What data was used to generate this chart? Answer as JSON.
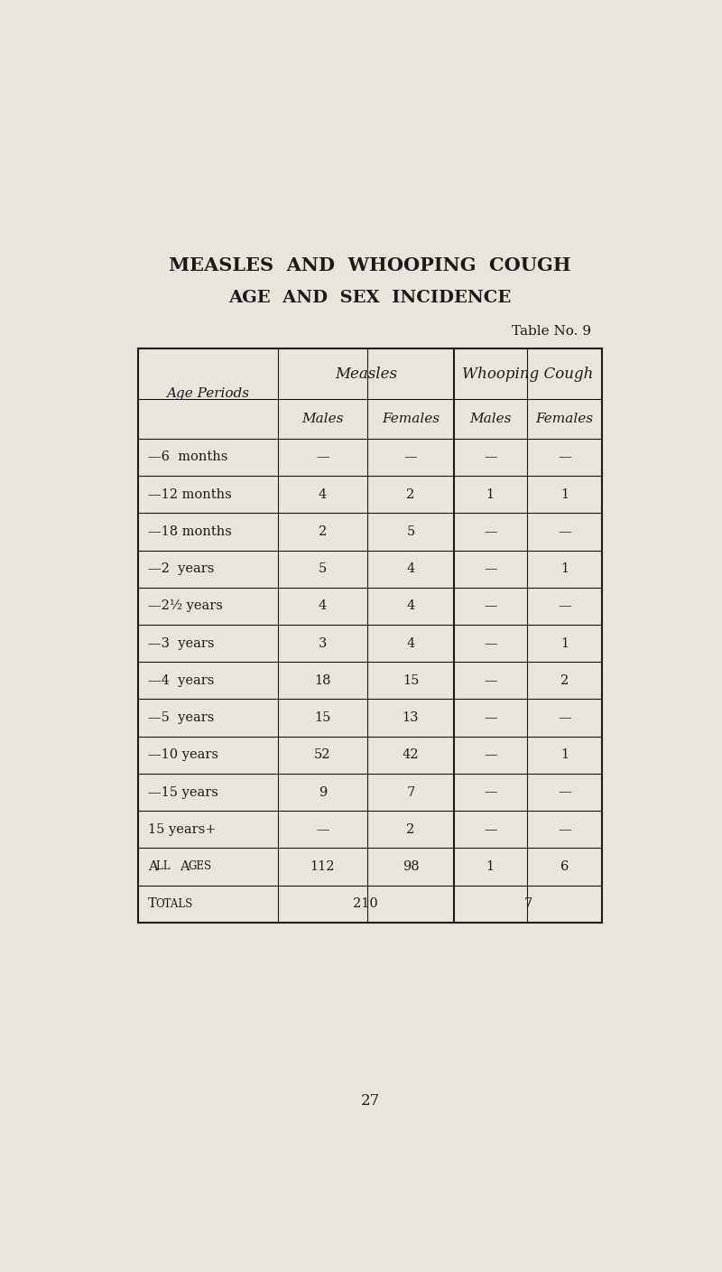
{
  "title_line1": "MEASLES  AND  WHOOPING  COUGH",
  "title_line2": "AGE  AND  SEX  INCIDENCE",
  "table_no": "Table No. 9",
  "row_label_header": "Age Periods",
  "rows": [
    [
      "—6  months",
      "—",
      "—",
      "—",
      "—"
    ],
    [
      "—12 months",
      "4",
      "2",
      "1",
      "1"
    ],
    [
      "—18 months",
      "2",
      "5",
      "—",
      "—"
    ],
    [
      "—2  years",
      "5",
      "4",
      "—",
      "1"
    ],
    [
      "—2½ years",
      "4",
      "4",
      "—",
      "—"
    ],
    [
      "—3  years",
      "3",
      "4",
      "—",
      "1"
    ],
    [
      "—4  years",
      "18",
      "15",
      "—",
      "2"
    ],
    [
      "—5  years",
      "15",
      "13",
      "—",
      "—"
    ],
    [
      "—10 years",
      "52",
      "42",
      "—",
      "1"
    ],
    [
      "—15 years",
      "9",
      "7",
      "—",
      "—"
    ],
    [
      "15 years+",
      "—",
      "2",
      "—",
      "—"
    ]
  ],
  "all_ages_label": "All  Ages",
  "all_ages_values": [
    "112",
    "98",
    "1",
    "6"
  ],
  "totals_label": "Totals",
  "totals_measles": "210",
  "totals_whooping": "7",
  "page_number": "27",
  "bg_color": "#e9e5dd",
  "text_color": "#1a1a1a",
  "line_color": "#1a1a1a"
}
